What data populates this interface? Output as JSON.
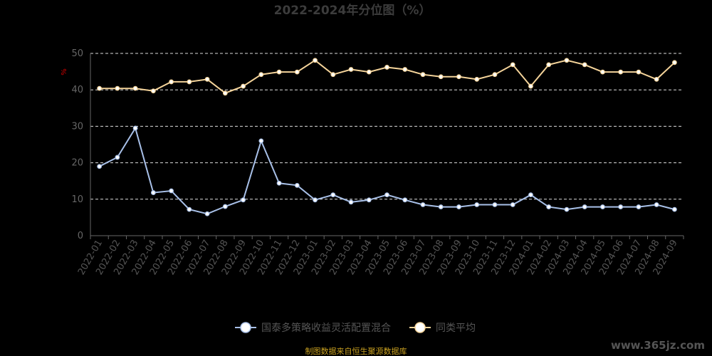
{
  "chart_data": {
    "type": "line",
    "title": "2022-2024年分位图（%）",
    "ylabel": "%",
    "ylim": [
      0,
      50
    ],
    "yticks": [
      0,
      10,
      20,
      30,
      40,
      50
    ],
    "grid": true,
    "legend_position": "bottom",
    "categories": [
      "2022-01",
      "2022-02",
      "2022-03",
      "2022-04",
      "2022-05",
      "2022-06",
      "2022-07",
      "2022-08",
      "2022-09",
      "2022-10",
      "2022-11",
      "2022-12",
      "2023-01",
      "2023-02",
      "2023-03",
      "2023-04",
      "2023-05",
      "2023-06",
      "2023-07",
      "2023-08",
      "2023-09",
      "2023-10",
      "2023-11",
      "2023-12",
      "2024-01",
      "2024-02",
      "2024-03",
      "2024-04",
      "2024-05",
      "2024-06",
      "2024-07",
      "2024-08",
      "2024-09"
    ],
    "series": [
      {
        "name": "国泰多策略收益灵活配置混合",
        "color": "#a8c0e8",
        "values": [
          19,
          21.5,
          29.5,
          11.8,
          12.3,
          7.2,
          6,
          8,
          9.8,
          26,
          14.4,
          13.8,
          9.8,
          11.2,
          9.2,
          9.8,
          11.2,
          9.8,
          8.5,
          7.9,
          7.9,
          8.5,
          8.5,
          8.5,
          11.2,
          7.9,
          7.2,
          7.9,
          7.9,
          7.9,
          7.9,
          8.5,
          7.2
        ]
      },
      {
        "name": "同类平均",
        "color": "#f5d49a",
        "values": [
          40.4,
          40.4,
          40.4,
          39.7,
          42.2,
          42.2,
          42.9,
          39.1,
          41,
          44.2,
          44.9,
          44.9,
          48.1,
          44.2,
          45.6,
          44.9,
          46.2,
          45.6,
          44.2,
          43.6,
          43.6,
          42.9,
          44.2,
          46.9,
          41,
          46.9,
          48.1,
          46.9,
          44.9,
          44.9,
          44.9,
          42.9,
          47.5
        ]
      }
    ]
  },
  "footer": {
    "source": "制图数据来自恒生聚源数据库",
    "watermark": "www.365jz.com"
  }
}
